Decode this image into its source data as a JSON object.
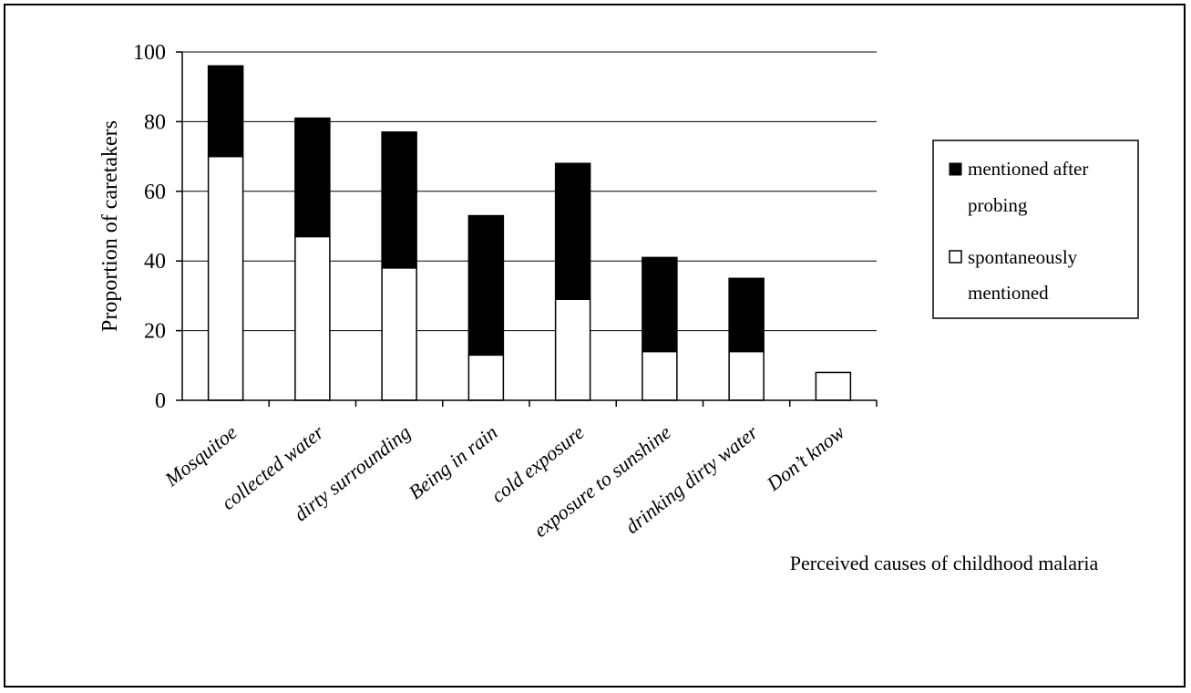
{
  "chart_data": {
    "type": "bar",
    "stacked": true,
    "categories": [
      "Mosquitoe",
      "collected water",
      "dirty surrounding",
      "Being in rain",
      "cold exposure",
      "exposure to sunshine",
      "drinking dirty water",
      "Don’t know"
    ],
    "series": [
      {
        "name": "spontaneously mentioned",
        "values": [
          70,
          47,
          38,
          13,
          29,
          14,
          14,
          8
        ],
        "color": "#ffffff"
      },
      {
        "name": "mentioned after probing",
        "values": [
          26,
          34,
          39,
          40,
          39,
          27,
          21,
          0
        ],
        "color": "#000000"
      }
    ],
    "xlabel": "Perceived causes of childhood malaria",
    "ylabel": "Proportion of caretakers",
    "ylim": [
      0,
      100
    ],
    "yticks": [
      "0",
      "20",
      "40",
      "60",
      "80",
      "100"
    ],
    "grid": true,
    "legend": {
      "position": "right",
      "entries": [
        {
          "line1": "mentioned after",
          "line2": "probing"
        },
        {
          "line1": "spontaneously",
          "line2": "mentioned"
        }
      ]
    }
  }
}
